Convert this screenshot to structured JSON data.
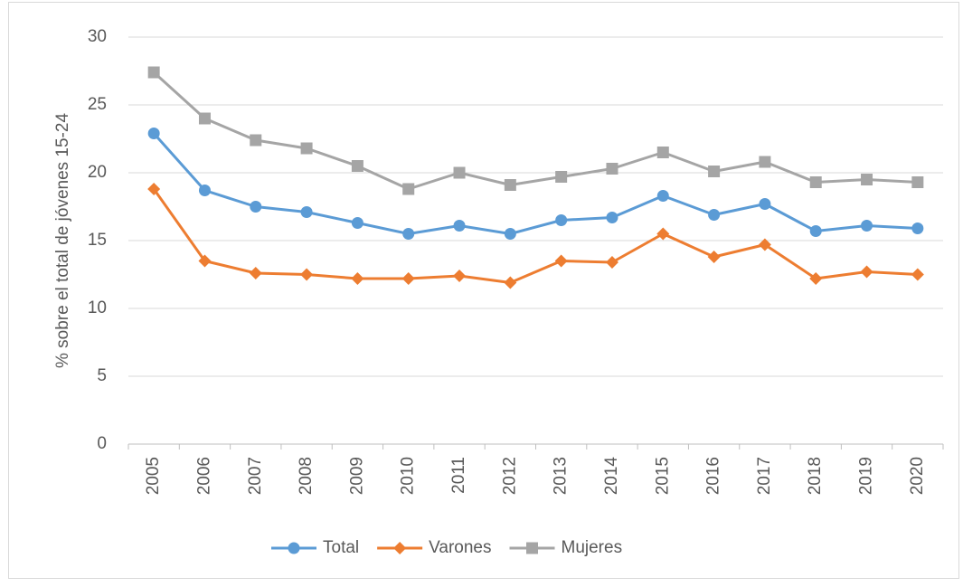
{
  "chart_data": {
    "type": "line",
    "y_label": "% sobre el total de jóvenes 15-24",
    "categories": [
      "2005",
      "2006",
      "2007",
      "2008",
      "2009",
      "2010",
      "2011",
      "2012",
      "2013",
      "2014",
      "2015",
      "2016",
      "2017",
      "2018",
      "2019",
      "2020"
    ],
    "series": [
      {
        "name": "Total",
        "color": "#5b9bd5",
        "marker": "circle",
        "values": [
          22.9,
          18.7,
          17.5,
          17.1,
          16.3,
          15.5,
          16.1,
          15.5,
          16.5,
          16.7,
          18.3,
          16.9,
          17.7,
          15.7,
          16.1,
          15.9
        ]
      },
      {
        "name": "Varones",
        "color": "#ed7d31",
        "marker": "diamond",
        "values": [
          18.8,
          13.5,
          12.6,
          12.5,
          12.2,
          12.2,
          12.4,
          11.9,
          13.5,
          13.4,
          15.5,
          13.8,
          14.7,
          12.2,
          12.7,
          12.5
        ]
      },
      {
        "name": "Mujeres",
        "color": "#a5a5a5",
        "marker": "square",
        "values": [
          27.4,
          24.0,
          22.4,
          21.8,
          20.5,
          18.8,
          20.0,
          19.1,
          19.7,
          20.3,
          21.5,
          20.1,
          20.8,
          19.3,
          19.5,
          19.3
        ]
      }
    ],
    "ylim": [
      0,
      30
    ],
    "yticks": [
      0,
      5,
      10,
      15,
      20,
      25,
      30
    ],
    "grid": true,
    "legend": "bottom"
  }
}
